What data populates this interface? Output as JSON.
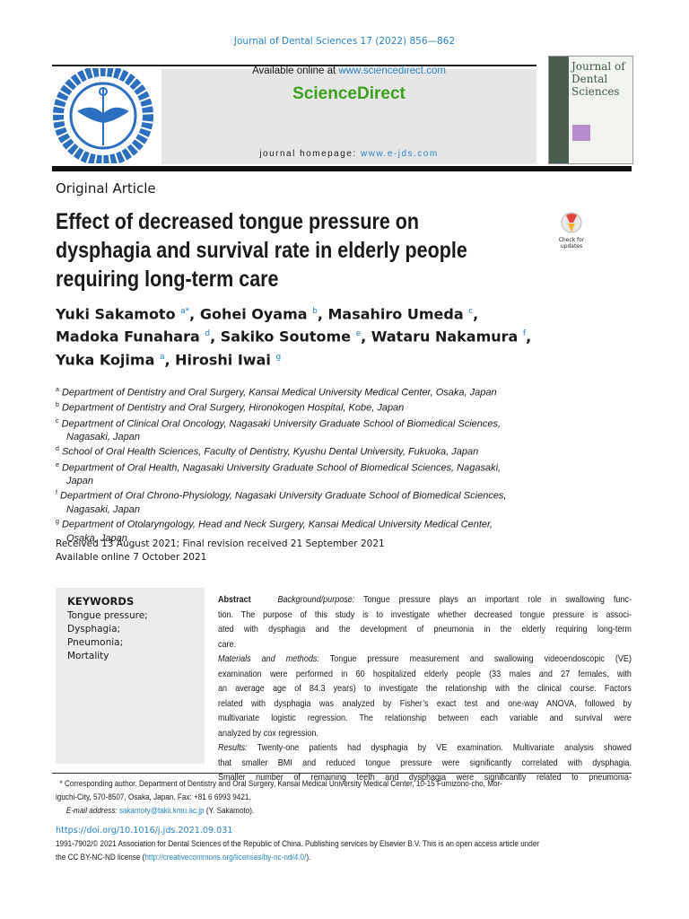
{
  "header": {
    "journal_citation": "Journal of Dental Sciences 17 (2022) 856—862",
    "available_prefix": "Available online at ",
    "available_link": "www.sciencedirect.com",
    "brand": "ScienceDirect",
    "homepage_prefix": "journal homepage: ",
    "homepage_link": "www.e-jds.com",
    "logo_text": "Taiwan Association for Dental Sciences",
    "cover_title": "Journal of Dental Sciences",
    "brand_color": "#3aa11d",
    "link_color": "#2a84c6"
  },
  "article": {
    "type": "Original Article",
    "title_lines": [
      "Effect of decreased tongue pressure on",
      "dysphagia and survival rate in elderly people",
      "requiring long-term care"
    ],
    "crossmark_label": "Check for updates",
    "authors": [
      [
        {
          "name": "Yuki Sakamoto",
          "sup": "a*"
        },
        {
          "name": "Gohei Oyama",
          "sup": "b"
        },
        {
          "name": "Masahiro Umeda",
          "sup": "c"
        }
      ],
      [
        {
          "name": "Madoka Funahara",
          "sup": "d"
        },
        {
          "name": "Sakiko Soutome",
          "sup": "e"
        },
        {
          "name": "Wataru Nakamura",
          "sup": "f"
        }
      ],
      [
        {
          "name": "Yuka Kojima",
          "sup": "a"
        },
        {
          "name": "Hiroshi Iwai",
          "sup": "g"
        }
      ]
    ],
    "affiliations": [
      {
        "sup": "a",
        "lines": [
          "Department of Dentistry and Oral Surgery, Kansai Medical University Medical Center, Osaka, Japan"
        ]
      },
      {
        "sup": "b",
        "lines": [
          "Department of Dentistry and Oral Surgery, Hironokogen Hospital, Kobe, Japan"
        ]
      },
      {
        "sup": "c",
        "lines": [
          "Department of Clinical Oral Oncology, Nagasaki University Graduate School of Biomedical Sciences,",
          "Nagasaki, Japan"
        ]
      },
      {
        "sup": "d",
        "lines": [
          "School of Oral Health Sciences, Faculty of Dentistry, Kyushu Dental University, Fukuoka, Japan"
        ]
      },
      {
        "sup": "e",
        "lines": [
          "Department of Oral Health, Nagasaki University Graduate School of Biomedical Sciences, Nagasaki,",
          "Japan"
        ]
      },
      {
        "sup": "f",
        "lines": [
          "Department of Oral Chrono-Physiology, Nagasaki University Graduate School of Biomedical Sciences,",
          "Nagasaki, Japan"
        ]
      },
      {
        "sup": "g",
        "lines": [
          "Department of Otolaryngology, Head and Neck Surgery, Kansai Medical University Medical Center,",
          "Osaka, Japan"
        ]
      }
    ],
    "dates": [
      "Received 13 August 2021; Final revision received 21 September 2021",
      "Available online 7 October 2021"
    ]
  },
  "keywords": {
    "title": "KEYWORDS",
    "items": [
      "Tongue pressure;",
      "Dysphagia;",
      "Pneumonia;",
      "Mortality"
    ]
  },
  "abstract": {
    "label": "Abstract",
    "lines": [
      {
        "head": "Background/purpose:",
        "text": " Tongue pressure plays an important role in swallowing func-"
      },
      {
        "text": "tion. The purpose of this study is to investigate whether decreased tongue pressure is associ-"
      },
      {
        "text": "ated with dysphagia and the development of pneumonia in the elderly requiring long-term"
      },
      {
        "text": "care.",
        "last": true
      },
      {
        "head": "Materials and methods:",
        "text": " Tongue pressure measurement and swallowing videoendoscopic (VE)"
      },
      {
        "text": "examination were performed in 60 hospitalized elderly people (33 males and 27 females, with"
      },
      {
        "text": "an average age of 84.3 years) to investigate the relationship with the clinical course. Factors"
      },
      {
        "text": "related with dysphagia was analyzed by Fisher’s exact test and one-way ANOVA, followed by"
      },
      {
        "text": "multivariate logistic regression. The relationship between each variable and survival were"
      },
      {
        "text": "analyzed by cox regression.",
        "last": true
      },
      {
        "head": "Results:",
        "text": " Twenty-one patients had dysphagia by VE examination. Multivariate analysis showed"
      },
      {
        "text": "that smaller BMI and reduced tongue pressure were significantly correlated with dysphagia."
      },
      {
        "text": "Smaller number of remaining teeth and dysphagia were significantly related to pneumonia-"
      }
    ]
  },
  "footnote": {
    "marker": "*",
    "line1": "Corresponding author. Department of Dentistry and Oral Surgery, Kansai Medical University Medical Center, 10-15 Fumizono-cho, Mor-",
    "line2": "iguchi-City, 570-8507, Osaka, Japan. Fax: +81 6 6993 9421.",
    "email_label": "E-mail address:",
    "email": "sakamoty@takii.kmu.ac.jp",
    "email_suffix": " (Y. Sakamoto)."
  },
  "doi": "https://doi.org/10.1016/j.jds.2021.09.031",
  "copyright": {
    "line1": "1991-7902/© 2021 Association for Dental Sciences of the Republic of China. Publishing services by Elsevier B.V. This is an open access article under",
    "line2_prefix": "the CC BY-NC-ND license (",
    "license_link": "http://creativecommons.org/licenses/by-nc-nd/4.0/",
    "line2_suffix": ")."
  }
}
